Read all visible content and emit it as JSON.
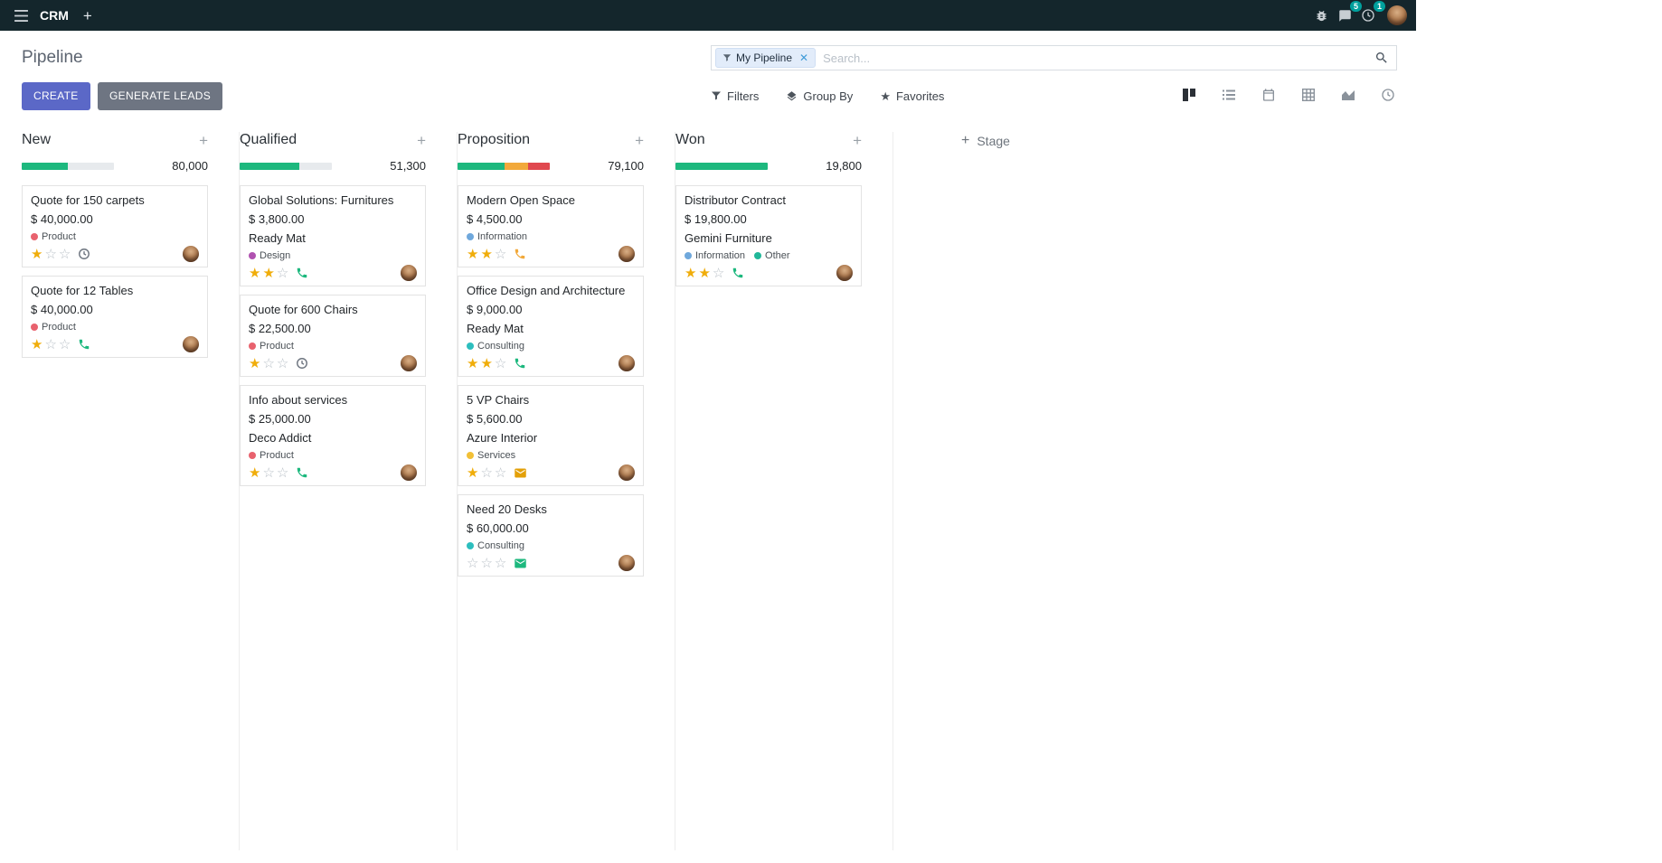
{
  "colors": {
    "topbar_bg": "#14262c",
    "primary": "#5b68c7",
    "secondary_btn": "#6e7582",
    "success": "#1db87e",
    "warning": "#f2a93b",
    "danger": "#e0484f",
    "badge": "#00a09d",
    "star_filled": "#f0ad0a",
    "progress_track": "#e7eaed"
  },
  "topbar": {
    "app_name": "CRM",
    "messages_badge": "5",
    "activities_badge": "1"
  },
  "control_panel": {
    "title": "Pipeline",
    "search": {
      "facet": "My Pipeline",
      "placeholder": "Search..."
    },
    "create_label": "CREATE",
    "generate_leads_label": "GENERATE LEADS",
    "filters_label": "Filters",
    "group_by_label": "Group By",
    "favorites_label": "Favorites",
    "view_switcher": [
      "kanban",
      "list",
      "calendar",
      "pivot",
      "graph",
      "activity"
    ],
    "active_view": "kanban"
  },
  "board": {
    "add_stage_label": "Stage",
    "columns": [
      {
        "name": "New",
        "counter": "80,000",
        "progress": [
          {
            "status": "success",
            "pct": 50
          }
        ],
        "cards": [
          {
            "title": "Quote for 150 carpets",
            "amount": "$ 40,000.00",
            "tags": [
              {
                "label": "Product",
                "color": "#e8626e"
              }
            ],
            "stars": 1,
            "activity": {
              "icon": "clock",
              "color": "#6e7580"
            }
          },
          {
            "title": "Quote for 12 Tables",
            "amount": "$ 40,000.00",
            "tags": [
              {
                "label": "Product",
                "color": "#e8626e"
              }
            ],
            "stars": 1,
            "activity": {
              "icon": "phone",
              "color": "#1db87e"
            }
          }
        ]
      },
      {
        "name": "Qualified",
        "counter": "51,300",
        "progress": [
          {
            "status": "success",
            "pct": 65
          }
        ],
        "cards": [
          {
            "title": "Global Solutions: Furnitures",
            "amount": "$ 3,800.00",
            "partner": "Ready Mat",
            "tags": [
              {
                "label": "Design",
                "color": "#b052b0"
              }
            ],
            "stars": 2,
            "activity": {
              "icon": "phone",
              "color": "#1db87e"
            }
          },
          {
            "title": "Quote for 600 Chairs",
            "amount": "$ 22,500.00",
            "tags": [
              {
                "label": "Product",
                "color": "#e8626e"
              }
            ],
            "stars": 1,
            "activity": {
              "icon": "clock",
              "color": "#6e7580"
            }
          },
          {
            "title": "Info about services",
            "amount": "$ 25,000.00",
            "partner": "Deco Addict",
            "tags": [
              {
                "label": "Product",
                "color": "#e8626e"
              }
            ],
            "stars": 1,
            "activity": {
              "icon": "phone",
              "color": "#1db87e"
            }
          }
        ]
      },
      {
        "name": "Proposition",
        "counter": "79,100",
        "progress": [
          {
            "status": "success",
            "pct": 51
          },
          {
            "status": "warning",
            "pct": 25
          },
          {
            "status": "danger",
            "pct": 24
          }
        ],
        "cards": [
          {
            "title": "Modern Open Space",
            "amount": "$ 4,500.00",
            "tags": [
              {
                "label": "Information",
                "color": "#6fa8dc"
              }
            ],
            "stars": 2,
            "activity": {
              "icon": "phone",
              "color": "#f2a93b"
            }
          },
          {
            "title": "Office Design and Architecture",
            "amount": "$ 9,000.00",
            "partner": "Ready Mat",
            "tags": [
              {
                "label": "Consulting",
                "color": "#2dbebe"
              }
            ],
            "stars": 2,
            "activity": {
              "icon": "phone",
              "color": "#1db87e"
            }
          },
          {
            "title": "5 VP Chairs",
            "amount": "$ 5,600.00",
            "partner": "Azure Interior",
            "tags": [
              {
                "label": "Services",
                "color": "#f2c037"
              }
            ],
            "stars": 1,
            "activity": {
              "icon": "envelope",
              "color": "#e3a008"
            }
          },
          {
            "title": "Need 20 Desks",
            "amount": "$ 60,000.00",
            "tags": [
              {
                "label": "Consulting",
                "color": "#2dbebe"
              }
            ],
            "stars": 0,
            "activity": {
              "icon": "envelope",
              "color": "#1db87e"
            }
          }
        ]
      },
      {
        "name": "Won",
        "counter": "19,800",
        "progress": [
          {
            "status": "success",
            "pct": 100
          }
        ],
        "cards": [
          {
            "title": "Distributor Contract",
            "amount": "$ 19,800.00",
            "partner": "Gemini Furniture",
            "tags": [
              {
                "label": "Information",
                "color": "#6fa8dc"
              },
              {
                "label": "Other",
                "color": "#21b799"
              }
            ],
            "stars": 2,
            "activity": {
              "icon": "phone",
              "color": "#1db87e"
            }
          }
        ]
      }
    ]
  }
}
